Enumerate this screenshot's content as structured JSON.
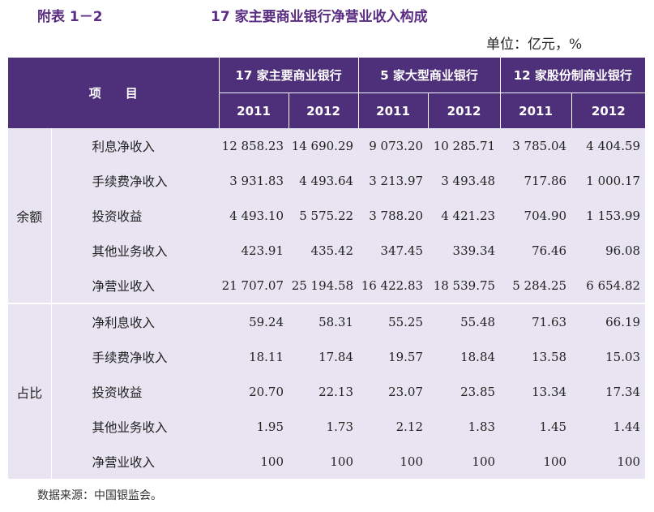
{
  "table_number": "附表 1－2",
  "table_title": "17 家主要商业银行净营业收入构成",
  "unit": "单位：亿元，%",
  "header": {
    "item": "项　　目",
    "groups": [
      "17 家主要商业银行",
      "5 家大型商业银行",
      "12 家股份制商业银行"
    ],
    "years": [
      "2011",
      "2012",
      "2011",
      "2012",
      "2011",
      "2012"
    ]
  },
  "sections": [
    {
      "name": "余额",
      "rows": [
        {
          "item": "利息净收入",
          "values": [
            "12 858.23",
            "14 690.29",
            "9 073.20",
            "10 285.71",
            "3 785.04",
            "4 404.59"
          ]
        },
        {
          "item": "手续费净收入",
          "values": [
            "3 931.83",
            "4 493.64",
            "3 213.97",
            "3 493.48",
            "717.86",
            "1 000.17"
          ]
        },
        {
          "item": "投资收益",
          "values": [
            "4 493.10",
            "5 575.22",
            "3 788.20",
            "4 421.23",
            "704.90",
            "1 153.99"
          ]
        },
        {
          "item": "其他业务收入",
          "values": [
            "423.91",
            "435.42",
            "347.45",
            "339.34",
            "76.46",
            "96.08"
          ]
        },
        {
          "item": "净营业收入",
          "values": [
            "21 707.07",
            "25 194.58",
            "16 422.83",
            "18 539.75",
            "5 284.25",
            "6 654.82"
          ]
        }
      ]
    },
    {
      "name": "占比",
      "rows": [
        {
          "item": "净利息收入",
          "values": [
            "59.24",
            "58.31",
            "55.25",
            "55.48",
            "71.63",
            "66.19"
          ]
        },
        {
          "item": "手续费净收入",
          "values": [
            "18.11",
            "17.84",
            "19.57",
            "18.84",
            "13.58",
            "15.03"
          ]
        },
        {
          "item": "投资收益",
          "values": [
            "20.70",
            "22.13",
            "23.07",
            "23.85",
            "13.34",
            "17.34"
          ]
        },
        {
          "item": "其他业务收入",
          "values": [
            "1.95",
            "1.73",
            "2.12",
            "1.83",
            "1.45",
            "1.44"
          ]
        },
        {
          "item": "净营业收入",
          "values": [
            "100",
            "100",
            "100",
            "100",
            "100",
            "100"
          ]
        }
      ]
    }
  ],
  "source": "数据来源：中国银监会。"
}
